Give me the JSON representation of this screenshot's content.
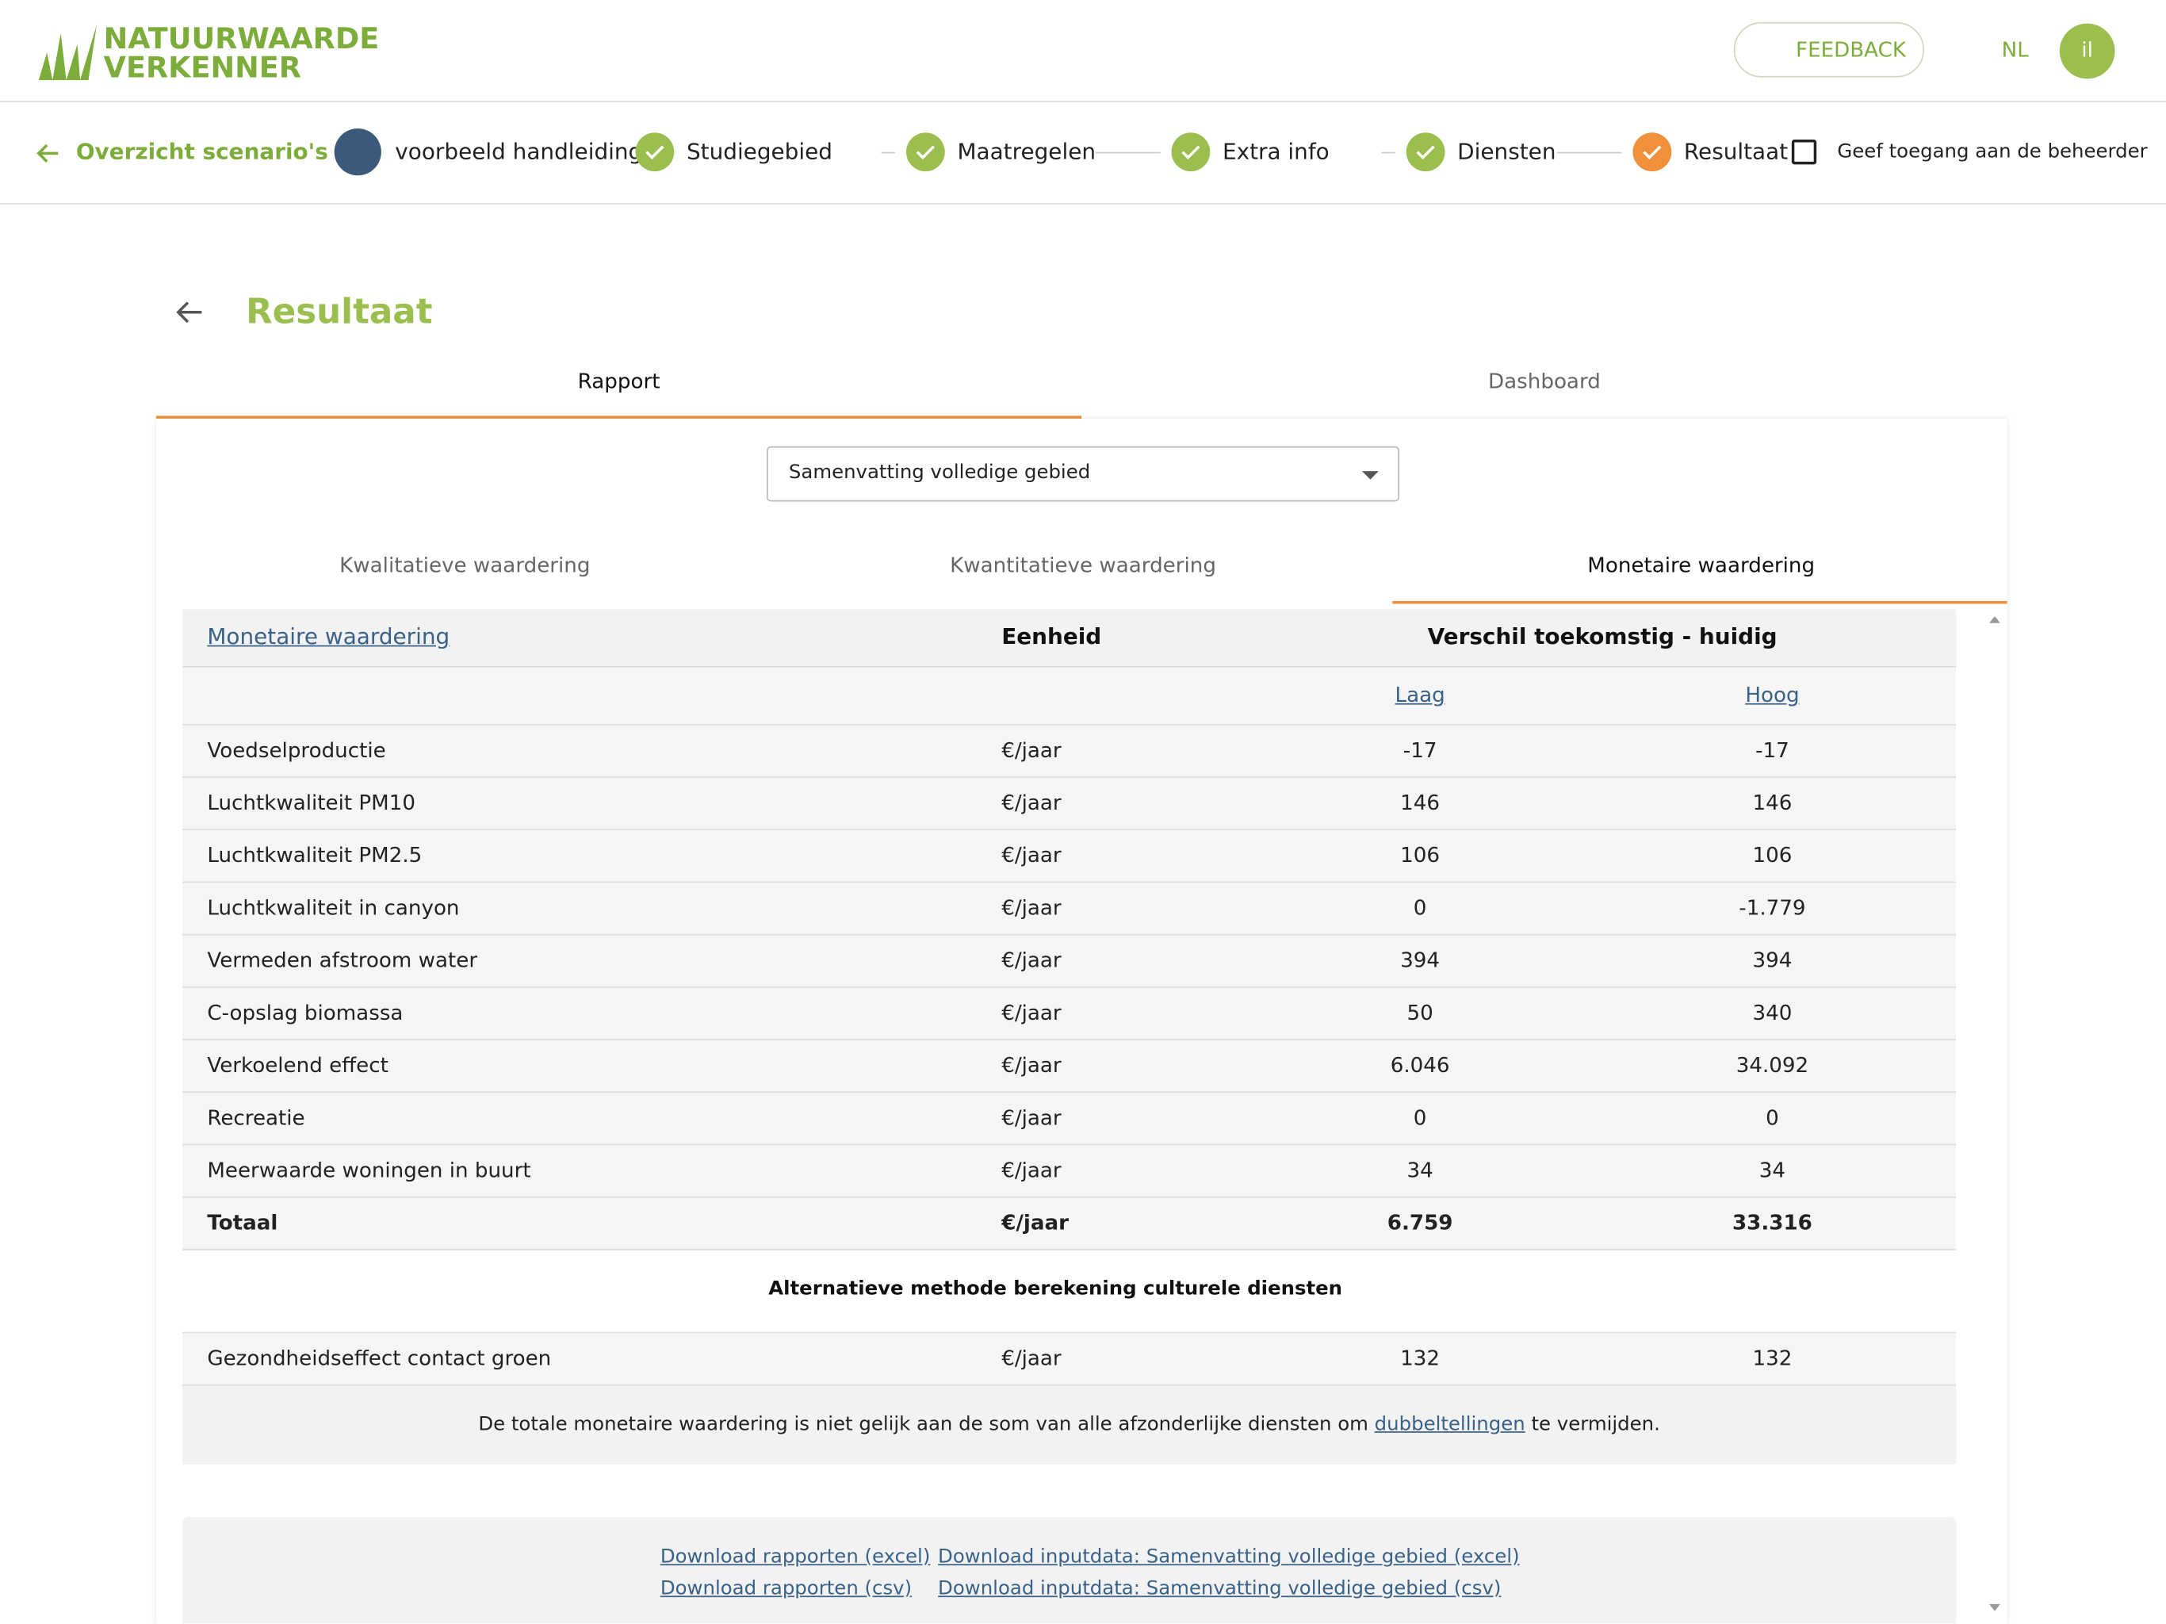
{
  "header": {
    "logo_line1": "NATUURWAARDE",
    "logo_line2": "VERKENNER",
    "feedback": "FEEDBACK",
    "language": "NL",
    "user_initials": "il"
  },
  "stepper": {
    "back": "Overzicht scenario's",
    "scenario": "voorbeeld handleiding",
    "steps": [
      {
        "label": "Studiegebied",
        "status": "done"
      },
      {
        "label": "Maatregelen",
        "status": "done"
      },
      {
        "label": "Extra info",
        "status": "done"
      },
      {
        "label": "Diensten",
        "status": "done"
      },
      {
        "label": "Resultaat",
        "status": "current"
      }
    ],
    "access_checkbox": "Geef toegang aan de beheerder"
  },
  "page": {
    "title": "Resultaat",
    "tabs": [
      {
        "label": "Rapport",
        "selected": true
      },
      {
        "label": "Dashboard",
        "selected": false
      }
    ],
    "dropdown": "Samenvatting volledige gebied",
    "subtabs": [
      {
        "label": "Kwalitatieve waardering",
        "selected": false
      },
      {
        "label": "Kwantitatieve waardering",
        "selected": false
      },
      {
        "label": "Monetaire waardering",
        "selected": true
      }
    ]
  },
  "table": {
    "header": [
      "Monetaire waardering",
      "Eenheid",
      "Verschil toekomstig - huidig"
    ],
    "subheader": [
      "Laag",
      "Hoog"
    ],
    "rows": [
      [
        "Voedselproductie",
        "€/jaar",
        "-17",
        "-17"
      ],
      [
        "Luchtkwaliteit PM10",
        "€/jaar",
        "146",
        "146"
      ],
      [
        "Luchtkwaliteit PM2.5",
        "€/jaar",
        "106",
        "106"
      ],
      [
        "Luchtkwaliteit in canyon",
        "€/jaar",
        "0",
        "-1.779"
      ],
      [
        "Vermeden afstroom water",
        "€/jaar",
        "394",
        "394"
      ],
      [
        "C-opslag biomassa",
        "€/jaar",
        "50",
        "340"
      ],
      [
        "Verkoelend effect",
        "€/jaar",
        "6.046",
        "34.092"
      ],
      [
        "Recreatie",
        "€/jaar",
        "0",
        "0"
      ],
      [
        "Meerwaarde woningen in buurt",
        "€/jaar",
        "34",
        "34"
      ]
    ],
    "total": [
      "Totaal",
      "€/jaar",
      "6.759",
      "33.316"
    ],
    "alt_title": "Alternatieve methode berekening culturele diensten",
    "alt_rows": [
      [
        "Gezondheidseffect contact groen",
        "€/jaar",
        "132",
        "132"
      ]
    ],
    "footnote_before": "De totale monetaire waardering is niet gelijk aan de som van alle afzonderlijke diensten om ",
    "footnote_link": "dubbeltellingen",
    "footnote_after": " te vermijden."
  },
  "downloads": [
    [
      "Download rapporten (excel)",
      "Download inputdata: Samenvatting volledige gebied (excel)"
    ],
    [
      "Download rapporten (csv)",
      "Download inputdata: Samenvatting volledige gebied (csv)"
    ]
  ]
}
